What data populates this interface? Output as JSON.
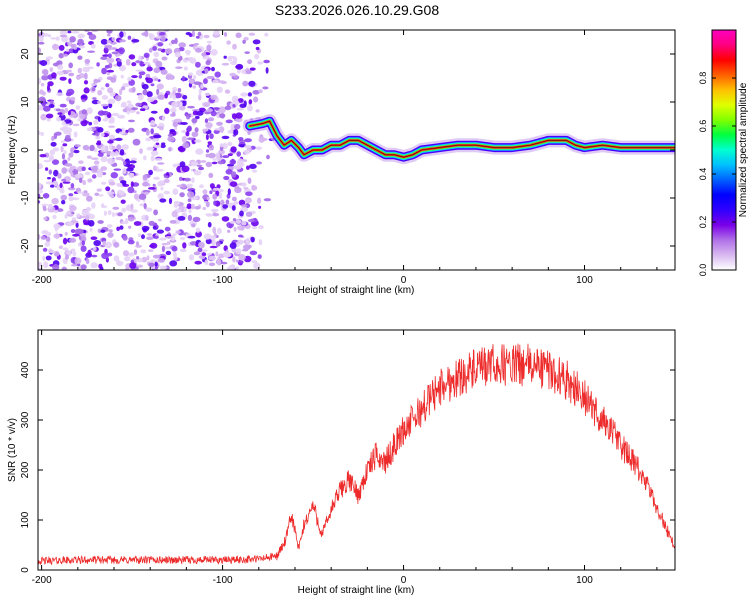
{
  "title": "S233.2026.026.10.29.G08",
  "chart_data": [
    {
      "type": "heatmap",
      "title": "",
      "xlabel": "Height of straight line (km)",
      "ylabel": "Frequency (Hz)",
      "xlim": [
        -202,
        150
      ],
      "ylim": [
        -25,
        25
      ],
      "xticks": [
        -200,
        -100,
        0,
        100
      ],
      "yticks": [
        -20,
        -10,
        0,
        10,
        20
      ],
      "colorbar": {
        "label": "Normalized spectral amplitude",
        "range": [
          0.0,
          1.0
        ],
        "ticks": [
          "0.0",
          "0.2",
          "0.4",
          "0.6",
          "0.8"
        ],
        "tick_values": [
          0.0,
          0.2,
          0.4,
          0.6,
          0.8
        ],
        "colors": [
          "#ffffff",
          "#d8b8f0",
          "#b070e8",
          "#7a00e8",
          "#3000ff",
          "#0000ff",
          "#0060ff",
          "#00c0ff",
          "#00ffd0",
          "#00ff40",
          "#80ff00",
          "#e0ff00",
          "#ffc000",
          "#ff6000",
          "#ff0000",
          "#ff0080",
          "#ff00c0"
        ]
      },
      "signal_ridge": {
        "x": [
          -85,
          -78,
          -74,
          -70,
          -66,
          -62,
          -58,
          -55,
          -50,
          -45,
          -40,
          -35,
          -30,
          -25,
          -20,
          -15,
          -10,
          -5,
          0,
          5,
          10,
          20,
          30,
          40,
          50,
          60,
          70,
          75,
          80,
          85,
          90,
          95,
          100,
          110,
          120,
          130,
          140,
          150
        ],
        "y": [
          5,
          5.5,
          6,
          3,
          1,
          2,
          0.5,
          -1,
          0,
          0,
          1,
          1,
          2,
          2,
          1,
          0,
          -1,
          -1,
          -1.5,
          -1,
          0,
          0.5,
          1,
          1,
          0.5,
          0.5,
          1,
          1.5,
          2,
          2,
          2,
          1,
          0.5,
          1,
          0.5,
          0.5,
          0.5,
          0.5
        ]
      },
      "noise_region_x": [
        -202,
        -72
      ]
    },
    {
      "type": "line",
      "title": "",
      "xlabel": "Height of straight line (km)",
      "ylabel": "SNR (10 * v/v)",
      "xlim": [
        -202,
        150
      ],
      "ylim": [
        0,
        480
      ],
      "xticks": [
        -200,
        -100,
        0,
        100
      ],
      "yticks": [
        0,
        100,
        200,
        300,
        400
      ],
      "series": [
        {
          "name": "SNR",
          "color": "#ee2b2b",
          "x": [
            -202,
            -180,
            -160,
            -140,
            -120,
            -100,
            -80,
            -70,
            -65,
            -62,
            -60,
            -58,
            -55,
            -50,
            -45,
            -40,
            -35,
            -30,
            -25,
            -20,
            -15,
            -10,
            -5,
            0,
            5,
            10,
            15,
            20,
            25,
            30,
            35,
            40,
            45,
            50,
            55,
            60,
            65,
            70,
            75,
            80,
            85,
            90,
            95,
            100,
            105,
            110,
            115,
            120,
            125,
            130,
            135,
            140,
            145,
            150
          ],
          "y": [
            18,
            20,
            20,
            20,
            20,
            20,
            22,
            28,
            60,
            110,
            80,
            40,
            90,
            130,
            70,
            120,
            160,
            180,
            150,
            200,
            230,
            215,
            250,
            280,
            300,
            320,
            345,
            365,
            375,
            385,
            395,
            400,
            405,
            410,
            410,
            410,
            410,
            410,
            405,
            400,
            390,
            380,
            365,
            345,
            320,
            300,
            280,
            250,
            225,
            200,
            165,
            125,
            85,
            45
          ]
        }
      ]
    }
  ]
}
